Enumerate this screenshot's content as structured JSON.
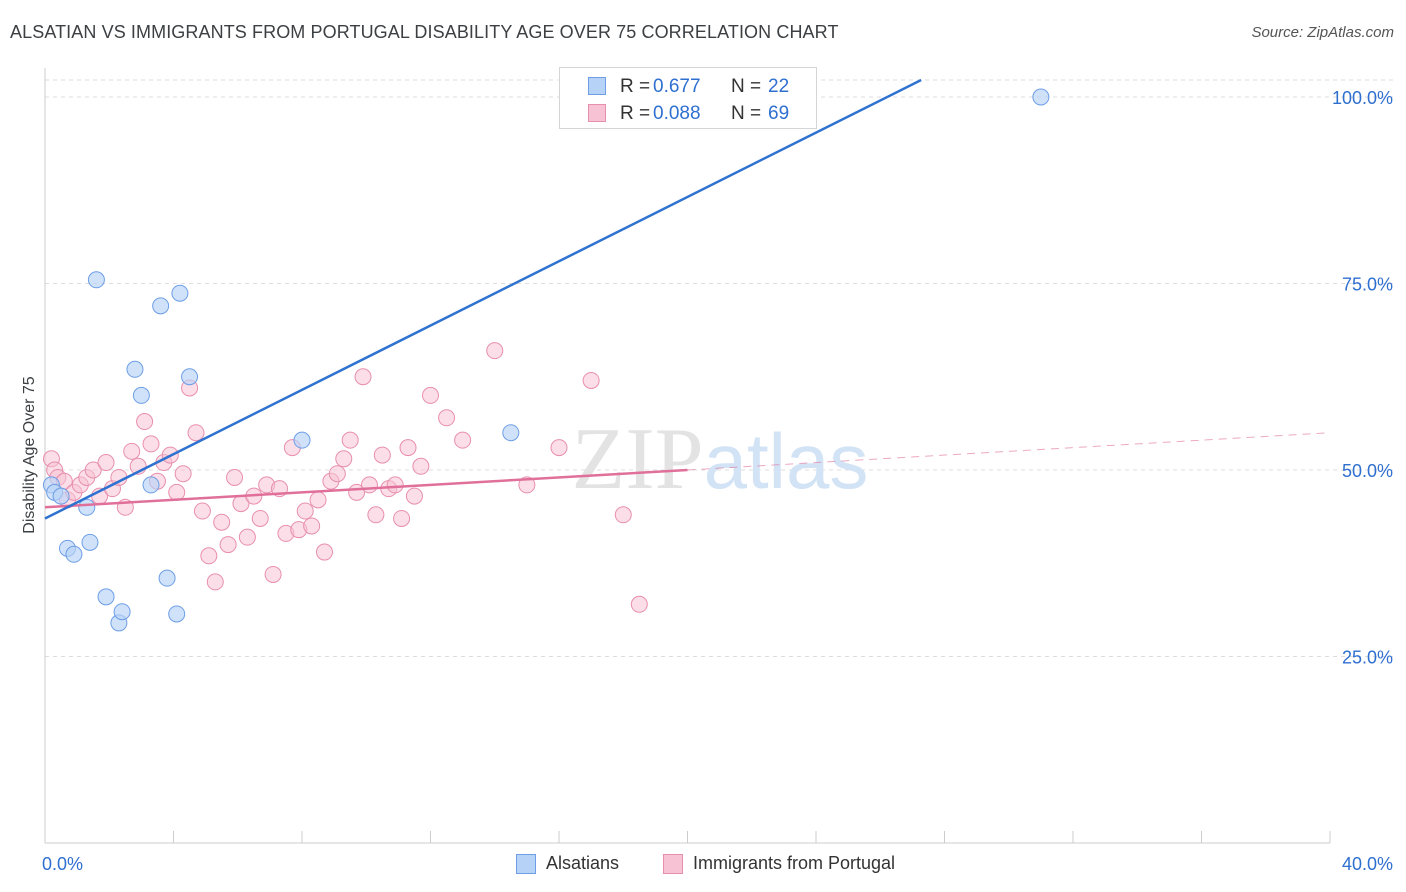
{
  "title": "ALSATIAN VS IMMIGRANTS FROM PORTUGAL DISABILITY AGE OVER 75 CORRELATION CHART",
  "source": "Source: ZipAtlas.com",
  "watermark": {
    "zip": "ZIP",
    "atlas": "atlas"
  },
  "legend_top": [
    {
      "r_label": "R =",
      "r_value": "0.677",
      "n_label": "N =",
      "n_value": "22"
    },
    {
      "r_label": "R =",
      "r_value": "0.088",
      "n_label": "N =",
      "n_value": "69"
    }
  ],
  "legend_bottom": [
    {
      "label": "Alsatians"
    },
    {
      "label": "Immigrants from Portugal"
    }
  ],
  "colors": {
    "blue_fill": "#b7d2f7",
    "blue_stroke": "#6d9ee6",
    "blue_line": "#2f72d0",
    "pink_fill": "#f7c2d4",
    "pink_stroke": "#e88fae",
    "pink_line": "#e0709a",
    "axis_text": "#2f6fd0",
    "grid": "#dddddd"
  },
  "chart_data": {
    "type": "scatter",
    "title": "ALSATIAN VS IMMIGRANTS FROM PORTUGAL DISABILITY AGE OVER 75 CORRELATION CHART",
    "xlabel": "",
    "ylabel": "Disability Age Over 75",
    "xlim": [
      0,
      40
    ],
    "ylim": [
      0,
      100
    ],
    "x_tick_labels": [
      "0.0%",
      "40.0%"
    ],
    "y_ticks": [
      25,
      50,
      75,
      100
    ],
    "y_tick_labels": [
      "25.0%",
      "50.0%",
      "75.0%",
      "100.0%"
    ],
    "grid": true,
    "legend": "bottom",
    "series": [
      {
        "name": "Alsatians",
        "r": 0.677,
        "n": 22,
        "trend": {
          "x": [
            0,
            29
          ],
          "y": [
            43.5,
            106
          ]
        },
        "points": [
          [
            0.2,
            48.0
          ],
          [
            0.3,
            47.0
          ],
          [
            0.5,
            46.5
          ],
          [
            0.7,
            39.5
          ],
          [
            0.9,
            38.7
          ],
          [
            1.3,
            45.0
          ],
          [
            1.4,
            40.3
          ],
          [
            1.6,
            75.5
          ],
          [
            1.9,
            33.0
          ],
          [
            2.3,
            29.5
          ],
          [
            2.4,
            31.0
          ],
          [
            2.8,
            63.5
          ],
          [
            3.0,
            60.0
          ],
          [
            3.3,
            48.0
          ],
          [
            3.6,
            72.0
          ],
          [
            3.8,
            35.5
          ],
          [
            4.1,
            30.7
          ],
          [
            4.2,
            73.7
          ],
          [
            4.5,
            62.5
          ],
          [
            8.0,
            54.0
          ],
          [
            14.5,
            55.0
          ],
          [
            31.0,
            100.0
          ]
        ]
      },
      {
        "name": "Immigrants from Portugal",
        "r": 0.088,
        "n": 69,
        "trend": {
          "x": [
            0,
            20
          ],
          "y": [
            45,
            50
          ]
        },
        "trend_dashed": {
          "x": [
            20,
            40
          ],
          "y": [
            50,
            55
          ]
        },
        "points": [
          [
            0.2,
            51.5
          ],
          [
            0.3,
            50.0
          ],
          [
            0.4,
            49.0
          ],
          [
            0.6,
            48.5
          ],
          [
            0.7,
            46.0
          ],
          [
            0.9,
            47.0
          ],
          [
            1.1,
            48.0
          ],
          [
            1.3,
            49.0
          ],
          [
            1.5,
            50.0
          ],
          [
            1.7,
            46.5
          ],
          [
            1.9,
            51.0
          ],
          [
            2.1,
            47.5
          ],
          [
            2.3,
            49.0
          ],
          [
            2.5,
            45.0
          ],
          [
            2.7,
            52.5
          ],
          [
            2.9,
            50.5
          ],
          [
            3.1,
            56.5
          ],
          [
            3.3,
            53.5
          ],
          [
            3.5,
            48.5
          ],
          [
            3.7,
            51.0
          ],
          [
            3.9,
            52.0
          ],
          [
            4.1,
            47.0
          ],
          [
            4.3,
            49.5
          ],
          [
            4.5,
            61.0
          ],
          [
            4.7,
            55.0
          ],
          [
            4.9,
            44.5
          ],
          [
            5.1,
            38.5
          ],
          [
            5.3,
            35.0
          ],
          [
            5.5,
            43.0
          ],
          [
            5.7,
            40.0
          ],
          [
            5.9,
            49.0
          ],
          [
            6.1,
            45.5
          ],
          [
            6.3,
            41.0
          ],
          [
            6.5,
            46.5
          ],
          [
            6.7,
            43.5
          ],
          [
            6.9,
            48.0
          ],
          [
            7.1,
            36.0
          ],
          [
            7.3,
            47.5
          ],
          [
            7.5,
            41.5
          ],
          [
            7.7,
            53.0
          ],
          [
            7.9,
            42.0
          ],
          [
            8.1,
            44.5
          ],
          [
            8.3,
            42.5
          ],
          [
            8.5,
            46.0
          ],
          [
            8.7,
            39.0
          ],
          [
            8.9,
            48.5
          ],
          [
            9.1,
            49.5
          ],
          [
            9.3,
            51.5
          ],
          [
            9.5,
            54.0
          ],
          [
            9.7,
            47.0
          ],
          [
            9.9,
            62.5
          ],
          [
            10.1,
            48.0
          ],
          [
            10.3,
            44.0
          ],
          [
            10.5,
            52.0
          ],
          [
            10.7,
            47.5
          ],
          [
            10.9,
            48.0
          ],
          [
            11.1,
            43.5
          ],
          [
            11.3,
            53.0
          ],
          [
            11.5,
            46.5
          ],
          [
            11.7,
            50.5
          ],
          [
            12.0,
            60.0
          ],
          [
            12.5,
            57.0
          ],
          [
            13.0,
            54.0
          ],
          [
            14.0,
            66.0
          ],
          [
            15.0,
            48.0
          ],
          [
            16.0,
            53.0
          ],
          [
            17.0,
            62.0
          ],
          [
            18.0,
            44.0
          ],
          [
            18.5,
            32.0
          ]
        ]
      }
    ]
  }
}
